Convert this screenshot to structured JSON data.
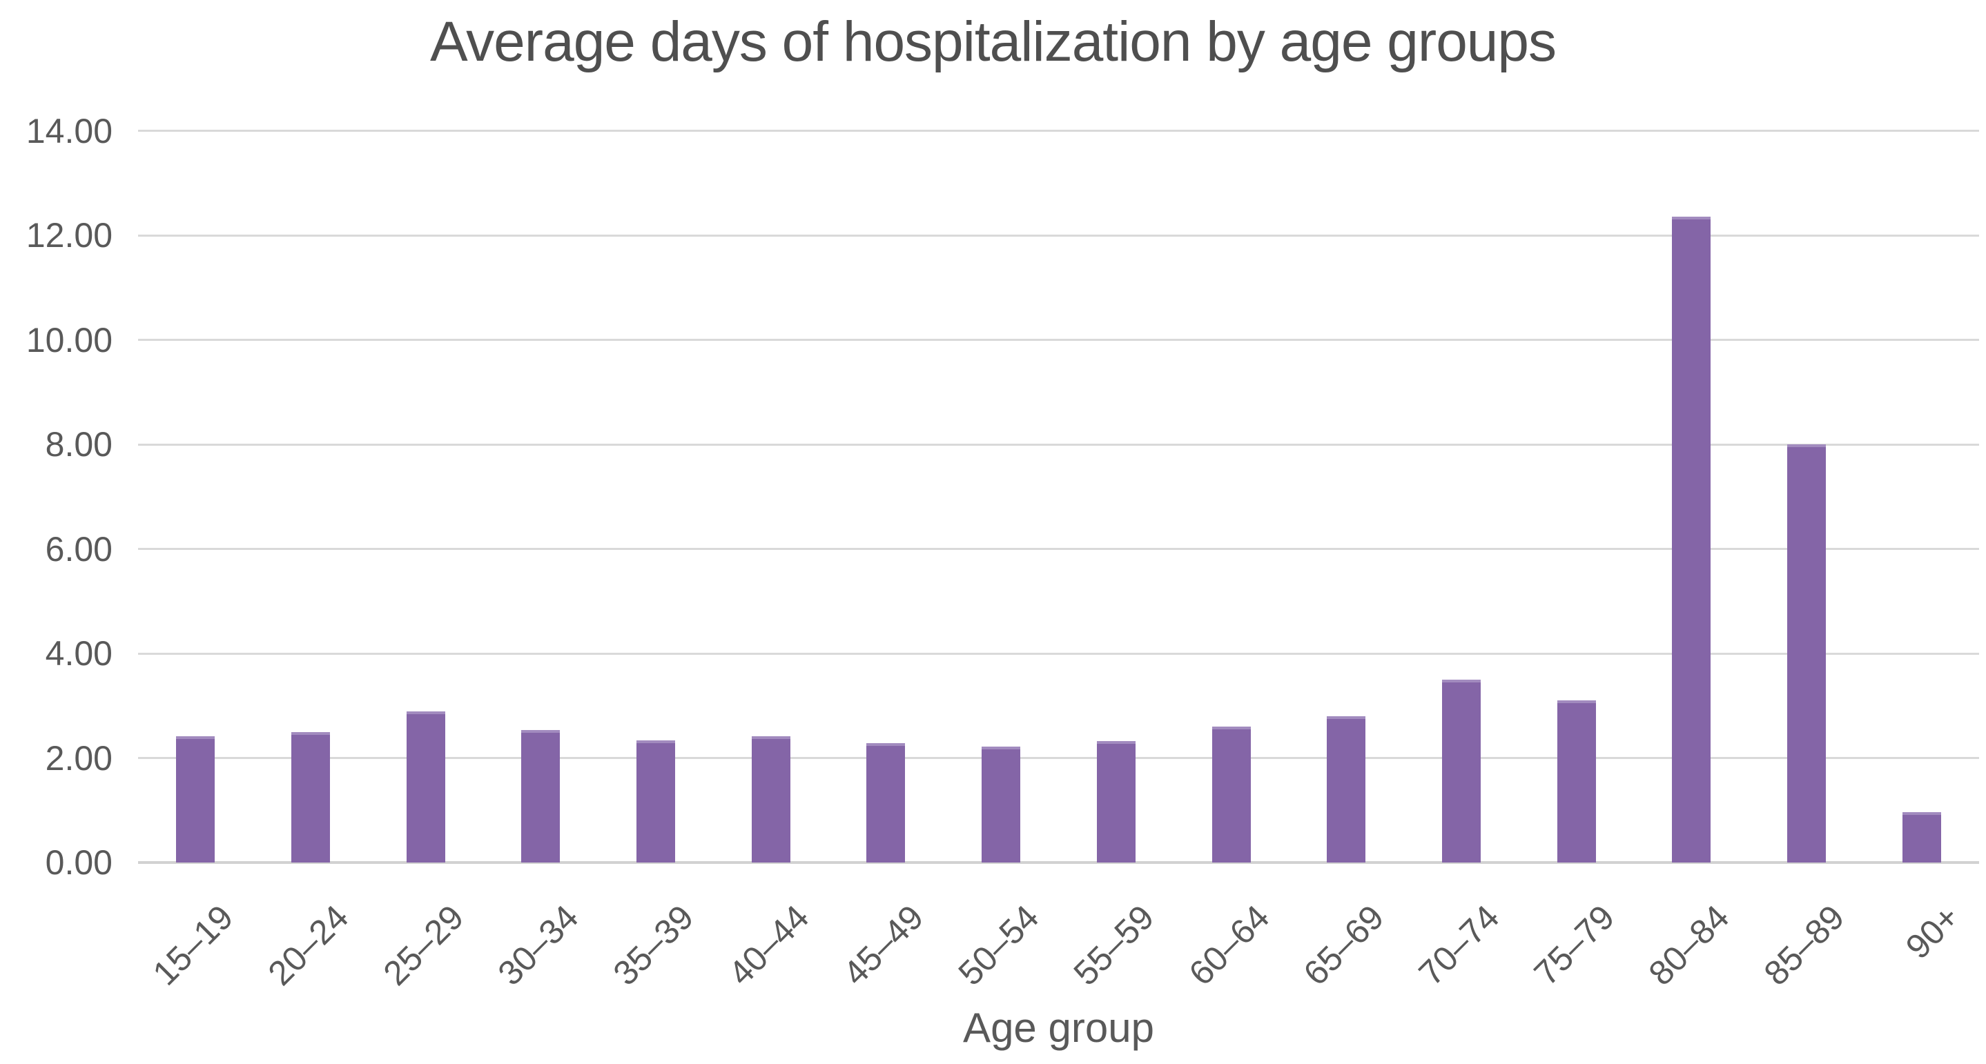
{
  "title": "Average days of hospitalization by age groups",
  "x_axis_title": "Age group",
  "colors": {
    "bar_fill": "#8465A7",
    "bar_top_edge": "#a28bbf",
    "gridline": "#d9d9d9",
    "axis_line": "#d2d2d2",
    "title_text": "#4f4f4f",
    "tick_text": "#595959",
    "background": "#ffffff"
  },
  "chart_data": {
    "type": "bar",
    "title": "Average days of hospitalization by age groups",
    "xlabel": "Age group",
    "ylabel": "",
    "categories": [
      "15–19",
      "20–24",
      "25–29",
      "30–34",
      "35–39",
      "40–44",
      "45–49",
      "50–54",
      "55–59",
      "60–64",
      "65–69",
      "70–74",
      "75–79",
      "80–84",
      "85–89",
      "90+"
    ],
    "values": [
      2.42,
      2.49,
      2.89,
      2.54,
      2.34,
      2.41,
      2.29,
      2.22,
      2.32,
      2.6,
      2.8,
      3.5,
      3.1,
      12.36,
      8.0,
      0.97
    ],
    "ylim": [
      0,
      14
    ],
    "ytick_values": [
      14,
      12,
      10,
      8,
      6,
      4,
      2,
      0
    ],
    "ytick_labels": [
      "14.00",
      "12.00",
      "10.00",
      "8.00",
      "6.00",
      "4.00",
      "2.00",
      "0.00"
    ],
    "grid": "horizontal-major",
    "legend": "none",
    "x_tick_rotation_deg": 45
  }
}
